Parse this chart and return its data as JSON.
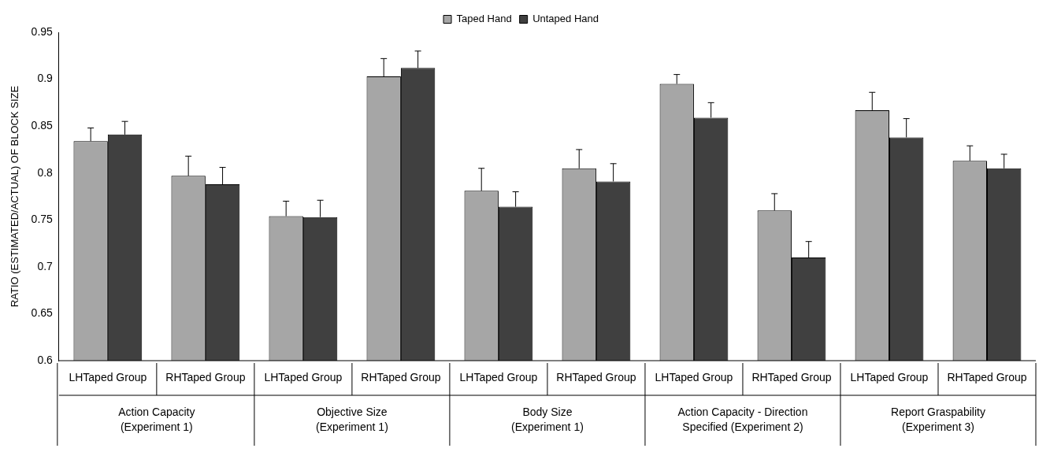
{
  "chart_data": {
    "type": "bar",
    "ylabel": "RATIO (ESTIMATED/ACTUAL) OF BLOCK SIZE",
    "categories": [
      "LHTaped Group",
      "RHTaped Group",
      "LHTaped Group",
      "RHTaped Group",
      "LHTaped Group",
      "RHTaped Group",
      "LHTaped Group",
      "RHTaped Group",
      "LHTaped Group",
      "RHTaped Group"
    ],
    "annotations": [
      "Action Capacity\n(Experiment 1)",
      "Objective Size\n(Experiment 1)",
      "Body Size\n(Experiment 1)",
      "Action Capacity - Direction\nSpecified (Experiment 2)",
      "Report Graspability\n(Experiment 3)"
    ],
    "series": [
      {
        "name": "Taped Hand",
        "color": "#a6a6a6",
        "values": [
          0.834,
          0.797,
          0.754,
          0.903,
          0.781,
          0.805,
          0.895,
          0.76,
          0.867,
          0.813
        ],
        "errors": [
          [
            0.834,
            0.848
          ],
          [
            0.797,
            0.818
          ],
          [
            0.754,
            0.77
          ],
          [
            0.903,
            0.922
          ],
          [
            0.781,
            0.805
          ],
          [
            0.805,
            0.825
          ],
          [
            0.895,
            0.905
          ],
          [
            0.76,
            0.778
          ],
          [
            0.867,
            0.886
          ],
          [
            0.813,
            0.829
          ]
        ]
      },
      {
        "name": "Untaped Hand",
        "color": "#404040",
        "values": [
          0.841,
          0.788,
          0.753,
          0.912,
          0.764,
          0.791,
          0.859,
          0.71,
          0.838,
          0.805
        ],
        "errors": [
          [
            0.841,
            0.855
          ],
          [
            0.788,
            0.806
          ],
          [
            0.753,
            0.771
          ],
          [
            0.912,
            0.93
          ],
          [
            0.764,
            0.78
          ],
          [
            0.791,
            0.81
          ],
          [
            0.859,
            0.875
          ],
          [
            0.71,
            0.727
          ],
          [
            0.838,
            0.858
          ],
          [
            0.805,
            0.82
          ]
        ]
      }
    ],
    "ylim": [
      0.6,
      0.95
    ],
    "yticks": [
      0.6,
      0.65,
      0.7,
      0.75,
      0.8,
      0.85,
      0.9,
      0.95
    ],
    "grid": false,
    "legend": "top"
  }
}
